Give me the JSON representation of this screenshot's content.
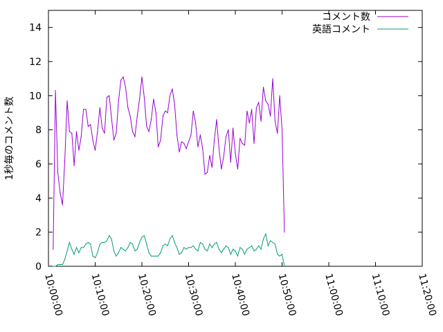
{
  "chart_data": {
    "type": "line",
    "ylabel": "1秒毎のコメント数",
    "xlabel": "",
    "ylim": [
      0,
      15
    ],
    "yticks": [
      0,
      2,
      4,
      6,
      8,
      10,
      12,
      14
    ],
    "xlim": [
      "10:00:00",
      "11:20:00"
    ],
    "xticks": [
      "10:00:00",
      "10:10:00",
      "10:20:00",
      "10:30:00",
      "10:40:00",
      "10:50:00",
      "11:00:00",
      "11:10:00",
      "11:20:00"
    ],
    "grid": false,
    "legend": "top-right",
    "series": [
      {
        "name": "コメント数",
        "color": "#9400d3",
        "points": [
          [
            "10:01:00",
            1.0
          ],
          [
            "10:01:30",
            10.3
          ],
          [
            "10:02:00",
            5.5
          ],
          [
            "10:02:30",
            4.3
          ],
          [
            "10:03:00",
            3.6
          ],
          [
            "10:03:30",
            6.2
          ],
          [
            "10:04:00",
            9.7
          ],
          [
            "10:04:30",
            7.9
          ],
          [
            "10:05:00",
            7.8
          ],
          [
            "10:05:30",
            5.9
          ],
          [
            "10:06:00",
            7.9
          ],
          [
            "10:06:30",
            6.8
          ],
          [
            "10:07:00",
            7.6
          ],
          [
            "10:07:30",
            9.2
          ],
          [
            "10:08:00",
            9.2
          ],
          [
            "10:08:30",
            8.2
          ],
          [
            "10:09:00",
            8.3
          ],
          [
            "10:09:30",
            7.4
          ],
          [
            "10:10:00",
            6.8
          ],
          [
            "10:10:30",
            7.9
          ],
          [
            "10:11:00",
            9.3
          ],
          [
            "10:11:30",
            8.1
          ],
          [
            "10:12:00",
            7.8
          ],
          [
            "10:12:30",
            9.9
          ],
          [
            "10:13:00",
            10.0
          ],
          [
            "10:13:30",
            8.7
          ],
          [
            "10:14:00",
            7.4
          ],
          [
            "10:14:30",
            7.8
          ],
          [
            "10:15:00",
            9.7
          ],
          [
            "10:15:30",
            10.9
          ],
          [
            "10:16:00",
            11.1
          ],
          [
            "10:16:30",
            10.5
          ],
          [
            "10:17:00",
            9.3
          ],
          [
            "10:17:30",
            8.8
          ],
          [
            "10:18:00",
            7.9
          ],
          [
            "10:18:30",
            7.6
          ],
          [
            "10:19:00",
            8.8
          ],
          [
            "10:19:30",
            9.8
          ],
          [
            "10:20:00",
            11.1
          ],
          [
            "10:20:30",
            9.9
          ],
          [
            "10:21:00",
            8.2
          ],
          [
            "10:21:30",
            7.9
          ],
          [
            "10:22:00",
            8.6
          ],
          [
            "10:22:30",
            9.8
          ],
          [
            "10:23:00",
            9.0
          ],
          [
            "10:23:30",
            7.0
          ],
          [
            "10:24:00",
            7.4
          ],
          [
            "10:24:30",
            8.8
          ],
          [
            "10:25:00",
            9.1
          ],
          [
            "10:25:30",
            9.0
          ],
          [
            "10:26:00",
            10.0
          ],
          [
            "10:26:30",
            10.4
          ],
          [
            "10:27:00",
            9.5
          ],
          [
            "10:27:30",
            7.7
          ],
          [
            "10:28:00",
            6.7
          ],
          [
            "10:28:30",
            7.3
          ],
          [
            "10:29:00",
            7.2
          ],
          [
            "10:29:30",
            6.9
          ],
          [
            "10:30:00",
            7.3
          ],
          [
            "10:30:30",
            7.7
          ],
          [
            "10:31:00",
            9.1
          ],
          [
            "10:31:30",
            8.4
          ],
          [
            "10:32:00",
            7.0
          ],
          [
            "10:32:30",
            7.7
          ],
          [
            "10:33:00",
            6.9
          ],
          [
            "10:33:30",
            5.4
          ],
          [
            "10:34:00",
            5.5
          ],
          [
            "10:34:30",
            6.5
          ],
          [
            "10:35:00",
            5.8
          ],
          [
            "10:35:30",
            7.4
          ],
          [
            "10:36:00",
            8.6
          ],
          [
            "10:36:30",
            6.9
          ],
          [
            "10:37:00",
            5.7
          ],
          [
            "10:37:30",
            6.4
          ],
          [
            "10:38:00",
            7.6
          ],
          [
            "10:38:30",
            8.0
          ],
          [
            "10:39:00",
            6.1
          ],
          [
            "10:39:30",
            8.1
          ],
          [
            "10:40:00",
            6.6
          ],
          [
            "10:40:30",
            5.7
          ],
          [
            "10:41:00",
            7.5
          ],
          [
            "10:41:30",
            7.2
          ],
          [
            "10:42:00",
            7.1
          ],
          [
            "10:42:30",
            9.1
          ],
          [
            "10:43:00",
            8.4
          ],
          [
            "10:43:30",
            9.2
          ],
          [
            "10:44:00",
            7.2
          ],
          [
            "10:44:30",
            9.3
          ],
          [
            "10:45:00",
            9.6
          ],
          [
            "10:45:30",
            8.5
          ],
          [
            "10:46:00",
            10.5
          ],
          [
            "10:46:30",
            9.7
          ],
          [
            "10:47:00",
            9.5
          ],
          [
            "10:47:30",
            8.8
          ],
          [
            "10:48:00",
            11.0
          ],
          [
            "10:48:30",
            8.5
          ],
          [
            "10:49:00",
            7.8
          ],
          [
            "10:49:30",
            10.0
          ],
          [
            "10:50:00",
            8.0
          ],
          [
            "10:50:30",
            2.0
          ]
        ]
      },
      {
        "name": "英語コメント",
        "color": "#009e73",
        "points": [
          [
            "10:01:00",
            0.0
          ],
          [
            "10:01:30",
            0.0
          ],
          [
            "10:02:00",
            0.1
          ],
          [
            "10:02:30",
            0.1
          ],
          [
            "10:03:00",
            0.1
          ],
          [
            "10:03:30",
            0.4
          ],
          [
            "10:04:00",
            0.9
          ],
          [
            "10:04:30",
            1.4
          ],
          [
            "10:05:00",
            1.0
          ],
          [
            "10:05:30",
            0.7
          ],
          [
            "10:06:00",
            1.1
          ],
          [
            "10:06:30",
            0.8
          ],
          [
            "10:07:00",
            1.1
          ],
          [
            "10:07:30",
            1.1
          ],
          [
            "10:08:00",
            1.3
          ],
          [
            "10:08:30",
            1.4
          ],
          [
            "10:09:00",
            1.3
          ],
          [
            "10:09:30",
            0.6
          ],
          [
            "10:10:00",
            0.5
          ],
          [
            "10:10:30",
            0.8
          ],
          [
            "10:11:00",
            1.3
          ],
          [
            "10:11:30",
            1.4
          ],
          [
            "10:12:00",
            1.4
          ],
          [
            "10:12:30",
            1.5
          ],
          [
            "10:13:00",
            1.8
          ],
          [
            "10:13:30",
            1.6
          ],
          [
            "10:14:00",
            0.9
          ],
          [
            "10:14:30",
            0.6
          ],
          [
            "10:15:00",
            0.8
          ],
          [
            "10:15:30",
            1.1
          ],
          [
            "10:16:00",
            1.0
          ],
          [
            "10:16:30",
            0.9
          ],
          [
            "10:17:00",
            1.1
          ],
          [
            "10:17:30",
            1.4
          ],
          [
            "10:18:00",
            1.3
          ],
          [
            "10:18:30",
            0.9
          ],
          [
            "10:19:00",
            1.0
          ],
          [
            "10:19:30",
            1.4
          ],
          [
            "10:20:00",
            1.7
          ],
          [
            "10:20:30",
            1.8
          ],
          [
            "10:21:00",
            1.3
          ],
          [
            "10:21:30",
            0.8
          ],
          [
            "10:22:00",
            0.6
          ],
          [
            "10:22:30",
            0.6
          ],
          [
            "10:23:00",
            0.6
          ],
          [
            "10:23:30",
            0.6
          ],
          [
            "10:24:00",
            0.8
          ],
          [
            "10:24:30",
            1.2
          ],
          [
            "10:25:00",
            1.3
          ],
          [
            "10:25:30",
            1.2
          ],
          [
            "10:26:00",
            1.6
          ],
          [
            "10:26:30",
            1.8
          ],
          [
            "10:27:00",
            1.4
          ],
          [
            "10:27:30",
            1.1
          ],
          [
            "10:28:00",
            0.7
          ],
          [
            "10:28:30",
            0.8
          ],
          [
            "10:29:00",
            1.1
          ],
          [
            "10:29:30",
            1.0
          ],
          [
            "10:30:00",
            1.1
          ],
          [
            "10:30:30",
            1.1
          ],
          [
            "10:31:00",
            1.2
          ],
          [
            "10:31:30",
            1.0
          ],
          [
            "10:32:00",
            0.9
          ],
          [
            "10:32:30",
            1.4
          ],
          [
            "10:33:00",
            1.3
          ],
          [
            "10:33:30",
            1.0
          ],
          [
            "10:34:00",
            0.9
          ],
          [
            "10:34:30",
            1.3
          ],
          [
            "10:35:00",
            1.1
          ],
          [
            "10:35:30",
            1.3
          ],
          [
            "10:36:00",
            1.4
          ],
          [
            "10:36:30",
            1.0
          ],
          [
            "10:37:00",
            0.8
          ],
          [
            "10:37:30",
            1.0
          ],
          [
            "10:38:00",
            1.2
          ],
          [
            "10:38:30",
            1.1
          ],
          [
            "10:39:00",
            0.7
          ],
          [
            "10:39:30",
            1.0
          ],
          [
            "10:40:00",
            0.9
          ],
          [
            "10:40:30",
            0.6
          ],
          [
            "10:41:00",
            1.1
          ],
          [
            "10:41:30",
            1.0
          ],
          [
            "10:42:00",
            0.7
          ],
          [
            "10:42:30",
            1.0
          ],
          [
            "10:43:00",
            1.1
          ],
          [
            "10:43:30",
            1.2
          ],
          [
            "10:44:00",
            0.9
          ],
          [
            "10:44:30",
            1.0
          ],
          [
            "10:45:00",
            1.2
          ],
          [
            "10:45:30",
            1.0
          ],
          [
            "10:46:00",
            1.6
          ],
          [
            "10:46:30",
            1.9
          ],
          [
            "10:47:00",
            1.2
          ],
          [
            "10:47:30",
            1.5
          ],
          [
            "10:48:00",
            1.4
          ],
          [
            "10:48:30",
            1.3
          ],
          [
            "10:49:00",
            0.7
          ],
          [
            "10:49:30",
            0.6
          ],
          [
            "10:50:00",
            0.7
          ],
          [
            "10:50:30",
            0.0
          ]
        ]
      }
    ]
  }
}
